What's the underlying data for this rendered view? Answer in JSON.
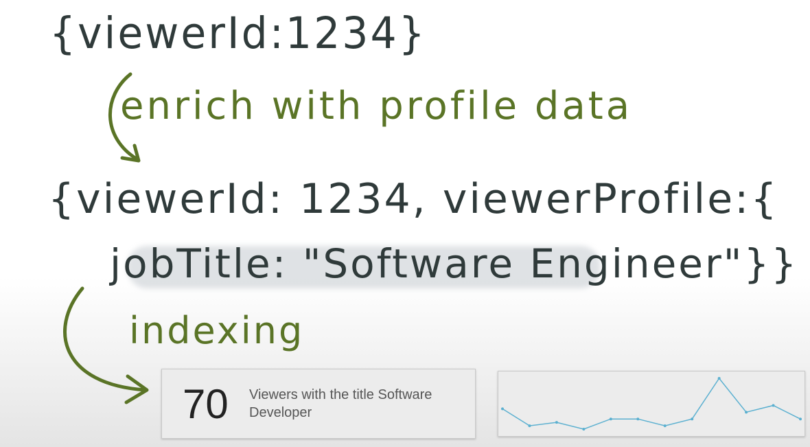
{
  "notes": {
    "line1": "{viewerId:1234}",
    "annotation1": "enrich with profile data",
    "line2": "{viewerId: 1234, viewerProfile:{",
    "line3": "jobTitle: \"Software Engineer\"}}",
    "annotation2": "indexing"
  },
  "stat": {
    "value": "70",
    "label": "Viewers with the title Software Developer"
  },
  "sparkline": {
    "values": [
      8,
      3,
      4,
      2,
      5,
      5,
      3,
      5,
      17,
      7,
      9,
      5
    ],
    "color": "#5bb0d0"
  },
  "colors": {
    "ink": "#2f3a3a",
    "annotation": "#5a7426"
  }
}
